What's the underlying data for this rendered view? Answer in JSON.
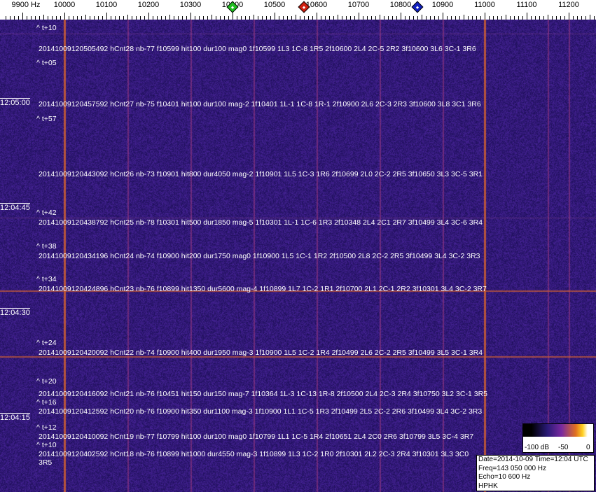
{
  "axis": {
    "unit_label": "9900 Hz",
    "ticks": [
      10000,
      10100,
      10200,
      10300,
      10400,
      10500,
      10600,
      10700,
      10800,
      10900,
      11000,
      11100,
      11200
    ],
    "markers": [
      {
        "name": "green-marker",
        "freq": 10400,
        "color": "#20c020"
      },
      {
        "name": "red-marker",
        "freq": 10570,
        "color": "#d02010"
      },
      {
        "name": "blue-marker",
        "freq": 10840,
        "color": "#1020c0"
      }
    ]
  },
  "time_labels": [
    "12:05:00",
    "12:04:45",
    "12:04:30",
    "12:04:15"
  ],
  "offsets": [
    "^ t+10",
    "^ t+05",
    "^ t+57",
    "^ t+42",
    "^ t+38",
    "^ t+34",
    "^ t+24",
    "^ t+20",
    "^ t+16",
    "^ t+12",
    "^ t+10"
  ],
  "detections": [
    "20141009120505492 hCnt28 nb-77 f10599 hit100 dur100 mag0 1f10599 1L3 1C-8 1R5 2f10600 2L4 2C-5 2R2 3f10600 3L6 3C-1 3R6",
    "20141009120457592 hCnt27 nb-75 f10401 hit100 dur100 mag-2 1f10401 1L-1 1C-8 1R-1 2f10900 2L6 2C-3 2R3 3f10600 3L8 3C1 3R6",
    "20141009120443092 hCnt26 nb-73 f10901 hit800 dur4050 mag-2 1f10901 1L5 1C-3 1R6 2f10699 2L0 2C-2 2R5 3f10650 3L3 3C-5 3R1",
    "20141009120438792 hCnt25 nb-78 f10301 hit500 dur1850 mag-5 1f10301 1L-1 1C-6 1R3 2f10348 2L4 2C1 2R7 3f10499 3L4 3C-6 3R4",
    "20141009120434196 hCnt24 nb-74 f10900 hit200 dur1750 mag0 1f10900 1L5 1C-1 1R2 2f10500 2L8 2C-2 2R5 3f10499 3L4 3C-2 3R3",
    "20141009120424896 hCnt23 nb-76 f10899 hit1350 dur5600 mag-4 1f10899 1L7 1C-2 1R1 2f10700 2L1 2C-1 2R2 3f10301 3L4 3C-2 3R7",
    "20141009120420092 hCnt22 nb-74 f10900 hit400 dur1950 mag-3 1f10900 1L5 1C-2 1R4 2f10499 2L6 2C-2 2R5 3f10499 3L5 3C-1 3R4",
    "20141009120416092 hCnt21 nb-76 f10451 hit150 dur150 mag-7 1f10364 1L-3 1C-13 1R-8 2f10500 2L4 2C-3 2R4 3f10750 3L2 3C-1 3R5",
    "20141009120412592 hCnt20 nb-76 f10900 hit350 dur1100 mag-3 1f10900 1L1 1C-5 1R3 2f10499 2L5 2C-2 2R6 3f10499 3L4 3C-2 3R3",
    "20141009120410092 hCnt19 nb-77 f10799 hit100 dur100 mag0 1f10799 1L1 1C-5 1R4 2f10651 2L4 2C0 2R6 3f10799 3L5 3C-4 3R7",
    "20141009120402592 hCnt18 nb-76 f10899 hit1000 dur4550 mag-3 1f10899 1L3 1C-2 1R0 2f10301 2L2 2C-3 2R4 3f10301 3L3 3C0 3R5"
  ],
  "scale": {
    "labels": [
      "-100 dB",
      "-50",
      "0"
    ]
  },
  "info": {
    "date_time": "Date=2014-10-09 Time=12:04 UTC",
    "freq": "Freq=143 050 000 Hz",
    "echo": "Echo=10 600 Hz",
    "callsign": "HPHK"
  }
}
